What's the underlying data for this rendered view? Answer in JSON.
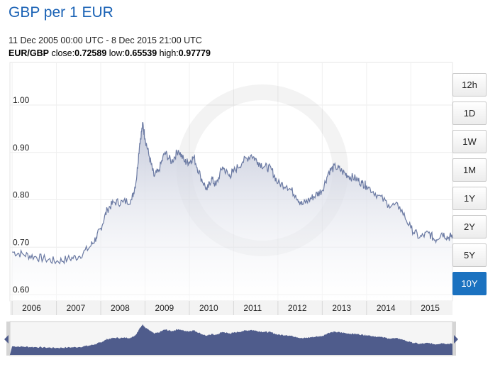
{
  "header": {
    "title": "GBP per 1 EUR",
    "range": "11 Dec 2005 00:00 UTC - 8 Dec 2015 21:00 UTC",
    "pair_label": "EUR/GBP",
    "close_label": "close:",
    "close": "0.72589",
    "low_label": "low:",
    "low": "0.65539",
    "high_label": "high:",
    "high": "0.97779"
  },
  "buttons": [
    {
      "label": "12h",
      "active": false
    },
    {
      "label": "1D",
      "active": false
    },
    {
      "label": "1W",
      "active": false
    },
    {
      "label": "1M",
      "active": false
    },
    {
      "label": "1Y",
      "active": false
    },
    {
      "label": "2Y",
      "active": false
    },
    {
      "label": "5Y",
      "active": false
    },
    {
      "label": "10Y",
      "active": true
    }
  ],
  "colors": {
    "line": "#6b7aa3",
    "fill_top": "#c4c9da",
    "navigator_fill": "#4f5c8c",
    "accent": "#1b72c0"
  },
  "chart_data": {
    "type": "area",
    "series": [
      {
        "name": "EUR/GBP",
        "x": [
          2006.0,
          2006.25,
          2006.5,
          2006.75,
          2007.0,
          2007.25,
          2007.5,
          2007.75,
          2007.9,
          2008.0,
          2008.15,
          2008.3,
          2008.5,
          2008.7,
          2008.8,
          2008.88,
          2008.95,
          2009.0,
          2009.1,
          2009.2,
          2009.3,
          2009.45,
          2009.6,
          2009.75,
          2009.9,
          2010.0,
          2010.1,
          2010.25,
          2010.4,
          2010.5,
          2010.6,
          2010.75,
          2010.9,
          2011.0,
          2011.2,
          2011.4,
          2011.55,
          2011.7,
          2011.85,
          2012.0,
          2012.2,
          2012.4,
          2012.55,
          2012.7,
          2012.85,
          2013.0,
          2013.15,
          2013.3,
          2013.45,
          2013.6,
          2013.75,
          2013.9,
          2014.0,
          2014.25,
          2014.5,
          2014.75,
          2015.0,
          2015.2,
          2015.4,
          2015.55,
          2015.7,
          2015.85,
          2015.94
        ],
        "values": [
          0.69,
          0.685,
          0.68,
          0.675,
          0.67,
          0.675,
          0.68,
          0.7,
          0.72,
          0.74,
          0.78,
          0.795,
          0.795,
          0.8,
          0.84,
          0.92,
          0.96,
          0.93,
          0.89,
          0.85,
          0.86,
          0.9,
          0.88,
          0.905,
          0.88,
          0.88,
          0.89,
          0.85,
          0.82,
          0.845,
          0.83,
          0.87,
          0.85,
          0.86,
          0.88,
          0.895,
          0.88,
          0.87,
          0.865,
          0.835,
          0.83,
          0.81,
          0.79,
          0.8,
          0.81,
          0.82,
          0.86,
          0.87,
          0.86,
          0.85,
          0.845,
          0.835,
          0.83,
          0.81,
          0.79,
          0.785,
          0.74,
          0.72,
          0.73,
          0.715,
          0.73,
          0.72,
          0.725
        ]
      }
    ],
    "x_ticks": [
      "2006",
      "2007",
      "2008",
      "2009",
      "2010",
      "2011",
      "2012",
      "2013",
      "2014",
      "2015"
    ],
    "y_ticks": [
      "0.60",
      "0.70",
      "0.80",
      "0.90",
      "1.00"
    ],
    "ylim": [
      0.6,
      1.0
    ],
    "xlim": [
      2005.95,
      2015.94
    ],
    "grid": true
  }
}
